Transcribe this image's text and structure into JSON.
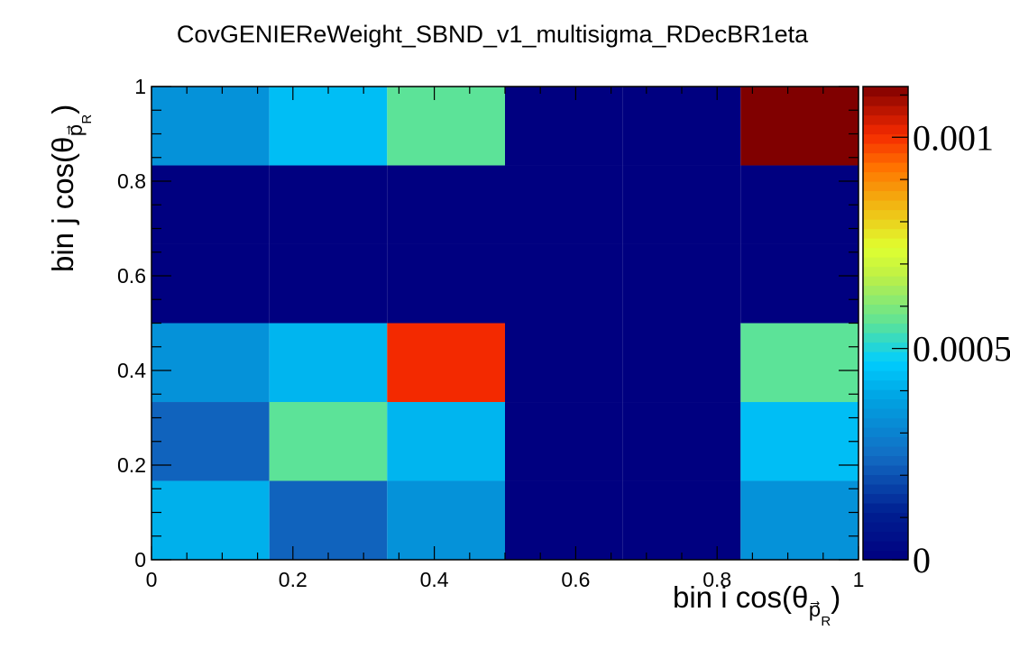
{
  "chart_data": {
    "type": "heatmap",
    "title": "CovGENIEReWeight_SBND_v1_multisigma_RDecBR1eta",
    "xlabel": "bin i cos(θ_{p⃗_R})",
    "ylabel": "bin j cos(θ_{p⃗_R})",
    "xlim": [
      0,
      1
    ],
    "ylim": [
      0,
      1
    ],
    "x_edges": [
      0,
      0.1667,
      0.3333,
      0.5,
      0.6667,
      0.8333,
      1
    ],
    "y_edges": [
      0,
      0.1667,
      0.3333,
      0.5,
      0.6667,
      0.8333,
      1
    ],
    "x_ticks": [
      "0",
      "0.2",
      "0.4",
      "0.6",
      "0.8",
      "1"
    ],
    "y_ticks": [
      "0",
      "0.2",
      "0.4",
      "0.6",
      "0.8",
      "1"
    ],
    "values": [
      [
        0.00041,
        0.00023,
        0.00034,
        0.0,
        0.0,
        0.00034
      ],
      [
        0.00023,
        0.00056,
        0.00042,
        0.0,
        0.0,
        0.00044
      ],
      [
        0.00034,
        0.00042,
        0.00101,
        0.0,
        0.0,
        0.00056
      ],
      [
        0.0,
        0.0,
        0.0,
        0.0,
        0.0,
        0.0
      ],
      [
        0.0,
        0.0,
        0.0,
        0.0,
        0.0,
        0.0
      ],
      [
        0.00034,
        0.00044,
        0.00056,
        0.0,
        0.0,
        0.00112
      ]
    ],
    "zlim": [
      0,
      0.00112
    ],
    "z_ticks": [
      {
        "value": 0,
        "label": "0"
      },
      {
        "value": 0.0005,
        "label": "0.0005"
      },
      {
        "value": 0.001,
        "label": "0.001"
      }
    ],
    "colormap": "rainbow (ROOT kRainBow)",
    "grid": false,
    "legend": "color palette on right"
  }
}
